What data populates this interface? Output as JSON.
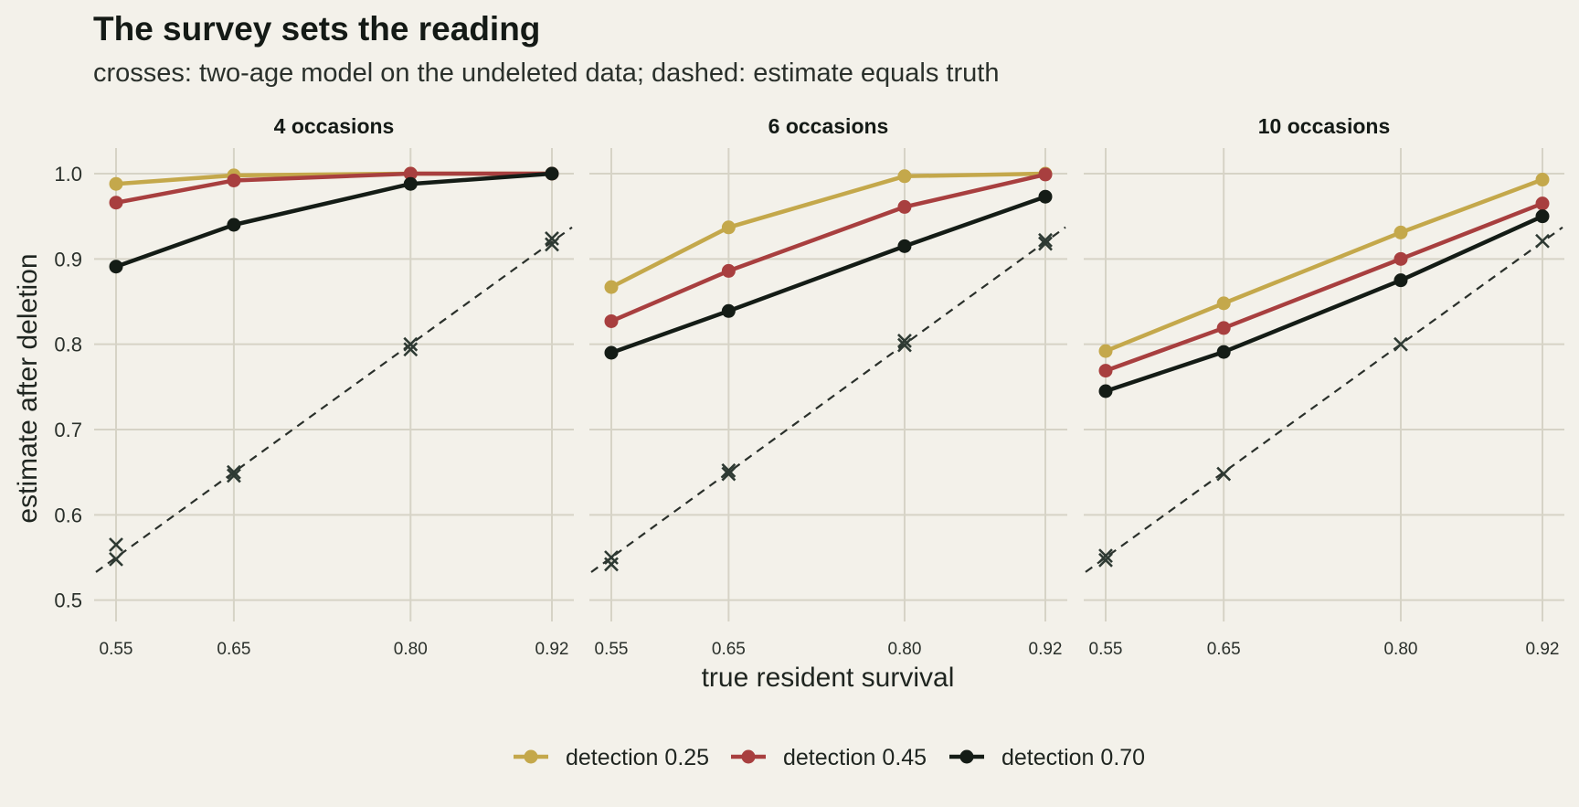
{
  "chart_data": {
    "type": "line",
    "title": "The survey sets the reading",
    "subtitle": "crosses: two-age model on the undeleted data; dashed: estimate equals truth",
    "xlabel": "true resident survival",
    "ylabel": "estimate after deletion",
    "x": [
      0.55,
      0.65,
      0.8,
      0.92
    ],
    "x_tick_labels": [
      "0.55",
      "0.65",
      "0.80",
      "0.92"
    ],
    "ylim": [
      0.5,
      1.0
    ],
    "y_ticks": [
      0.5,
      0.6,
      0.7,
      0.8,
      0.9,
      1.0
    ],
    "y_tick_labels": [
      "0.5",
      "0.6",
      "0.7",
      "0.8",
      "0.9",
      "1.0"
    ],
    "grid": true,
    "legend_position": "bottom",
    "series_meta": [
      {
        "name": "detection 0.25",
        "color": "#c4a84b"
      },
      {
        "name": "detection 0.45",
        "color": "#a83f3f"
      },
      {
        "name": "detection 0.70",
        "color": "#141c16"
      }
    ],
    "cross_color": "#2e3a33",
    "reference_line": "dashed, estimate equals truth",
    "panels": [
      {
        "title": "4 occasions",
        "series": [
          {
            "name": "detection 0.25",
            "values": [
              0.988,
              0.998,
              1.0,
              1.0
            ]
          },
          {
            "name": "detection 0.45",
            "values": [
              0.966,
              0.992,
              1.0,
              1.0
            ]
          },
          {
            "name": "detection 0.70",
            "values": [
              0.891,
              0.94,
              0.988,
              1.0
            ]
          }
        ],
        "crosses": [
          {
            "x": 0.55,
            "y": 0.565
          },
          {
            "x": 0.55,
            "y": 0.548
          },
          {
            "x": 0.65,
            "y": 0.65
          },
          {
            "x": 0.65,
            "y": 0.646
          },
          {
            "x": 0.8,
            "y": 0.8
          },
          {
            "x": 0.8,
            "y": 0.794
          },
          {
            "x": 0.92,
            "y": 0.924
          },
          {
            "x": 0.92,
            "y": 0.917
          }
        ]
      },
      {
        "title": "6 occasions",
        "series": [
          {
            "name": "detection 0.25",
            "values": [
              0.867,
              0.937,
              0.997,
              1.0
            ]
          },
          {
            "name": "detection 0.45",
            "values": [
              0.827,
              0.886,
              0.961,
              0.999
            ]
          },
          {
            "name": "detection 0.70",
            "values": [
              0.79,
              0.839,
              0.915,
              0.973
            ]
          }
        ],
        "crosses": [
          {
            "x": 0.55,
            "y": 0.55
          },
          {
            "x": 0.55,
            "y": 0.542
          },
          {
            "x": 0.65,
            "y": 0.652
          },
          {
            "x": 0.65,
            "y": 0.648
          },
          {
            "x": 0.8,
            "y": 0.804
          },
          {
            "x": 0.8,
            "y": 0.799
          },
          {
            "x": 0.92,
            "y": 0.922
          },
          {
            "x": 0.92,
            "y": 0.918
          }
        ]
      },
      {
        "title": "10 occasions",
        "series": [
          {
            "name": "detection 0.25",
            "values": [
              0.792,
              0.848,
              0.931,
              0.993
            ]
          },
          {
            "name": "detection 0.45",
            "values": [
              0.769,
              0.819,
              0.9,
              0.965
            ]
          },
          {
            "name": "detection 0.70",
            "values": [
              0.745,
              0.791,
              0.875,
              0.95
            ]
          }
        ],
        "crosses": [
          {
            "x": 0.55,
            "y": 0.552
          },
          {
            "x": 0.55,
            "y": 0.547
          },
          {
            "x": 0.65,
            "y": 0.648
          },
          {
            "x": 0.8,
            "y": 0.8
          },
          {
            "x": 0.92,
            "y": 0.921
          }
        ]
      }
    ]
  }
}
